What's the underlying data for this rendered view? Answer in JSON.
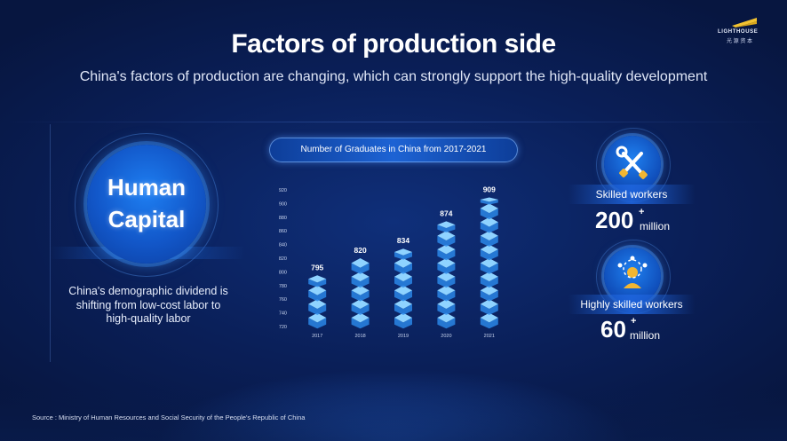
{
  "logo": {
    "name": "LIGHTHOUSE",
    "chinese": "光 源 资 本"
  },
  "header": {
    "title": "Factors of production side",
    "subtitle": "China's factors of production are changing, which can strongly support the high-quality development"
  },
  "left_panel": {
    "circle_line1": "Human",
    "circle_line2": "Capital",
    "description": "China's demographic dividend is shifting from low-cost labor to high-quality labor"
  },
  "chart_data": {
    "type": "bar",
    "title": "Number of Graduates in China from 2017-2021",
    "categories": [
      "2017",
      "2018",
      "2019",
      "2020",
      "2021"
    ],
    "values": [
      795,
      820,
      834,
      874,
      909
    ],
    "value_labels": [
      "795",
      "820",
      "834",
      "874",
      "909"
    ],
    "ylim": [
      720,
      920
    ],
    "yticks": [
      "720",
      "740",
      "760",
      "780",
      "800",
      "820",
      "840",
      "860",
      "880",
      "900",
      "920"
    ],
    "xlabel": "",
    "ylabel": "",
    "grid": false
  },
  "right_panel": {
    "stats": [
      {
        "label": "Skilled workers",
        "number": "200",
        "plus": "+",
        "unit": "million",
        "icon": "tools-icon"
      },
      {
        "label": "Highly skilled workers",
        "number": "60",
        "plus": "+",
        "unit": "million",
        "icon": "worker-network-icon"
      }
    ]
  },
  "footer": {
    "source": "Source : Ministry of Human Resources and Social Security of the People's Republic of China"
  },
  "colors": {
    "accent": "#1d63d4",
    "bar_top": "#8fd3ff",
    "bar_side": "#2a86e6"
  }
}
